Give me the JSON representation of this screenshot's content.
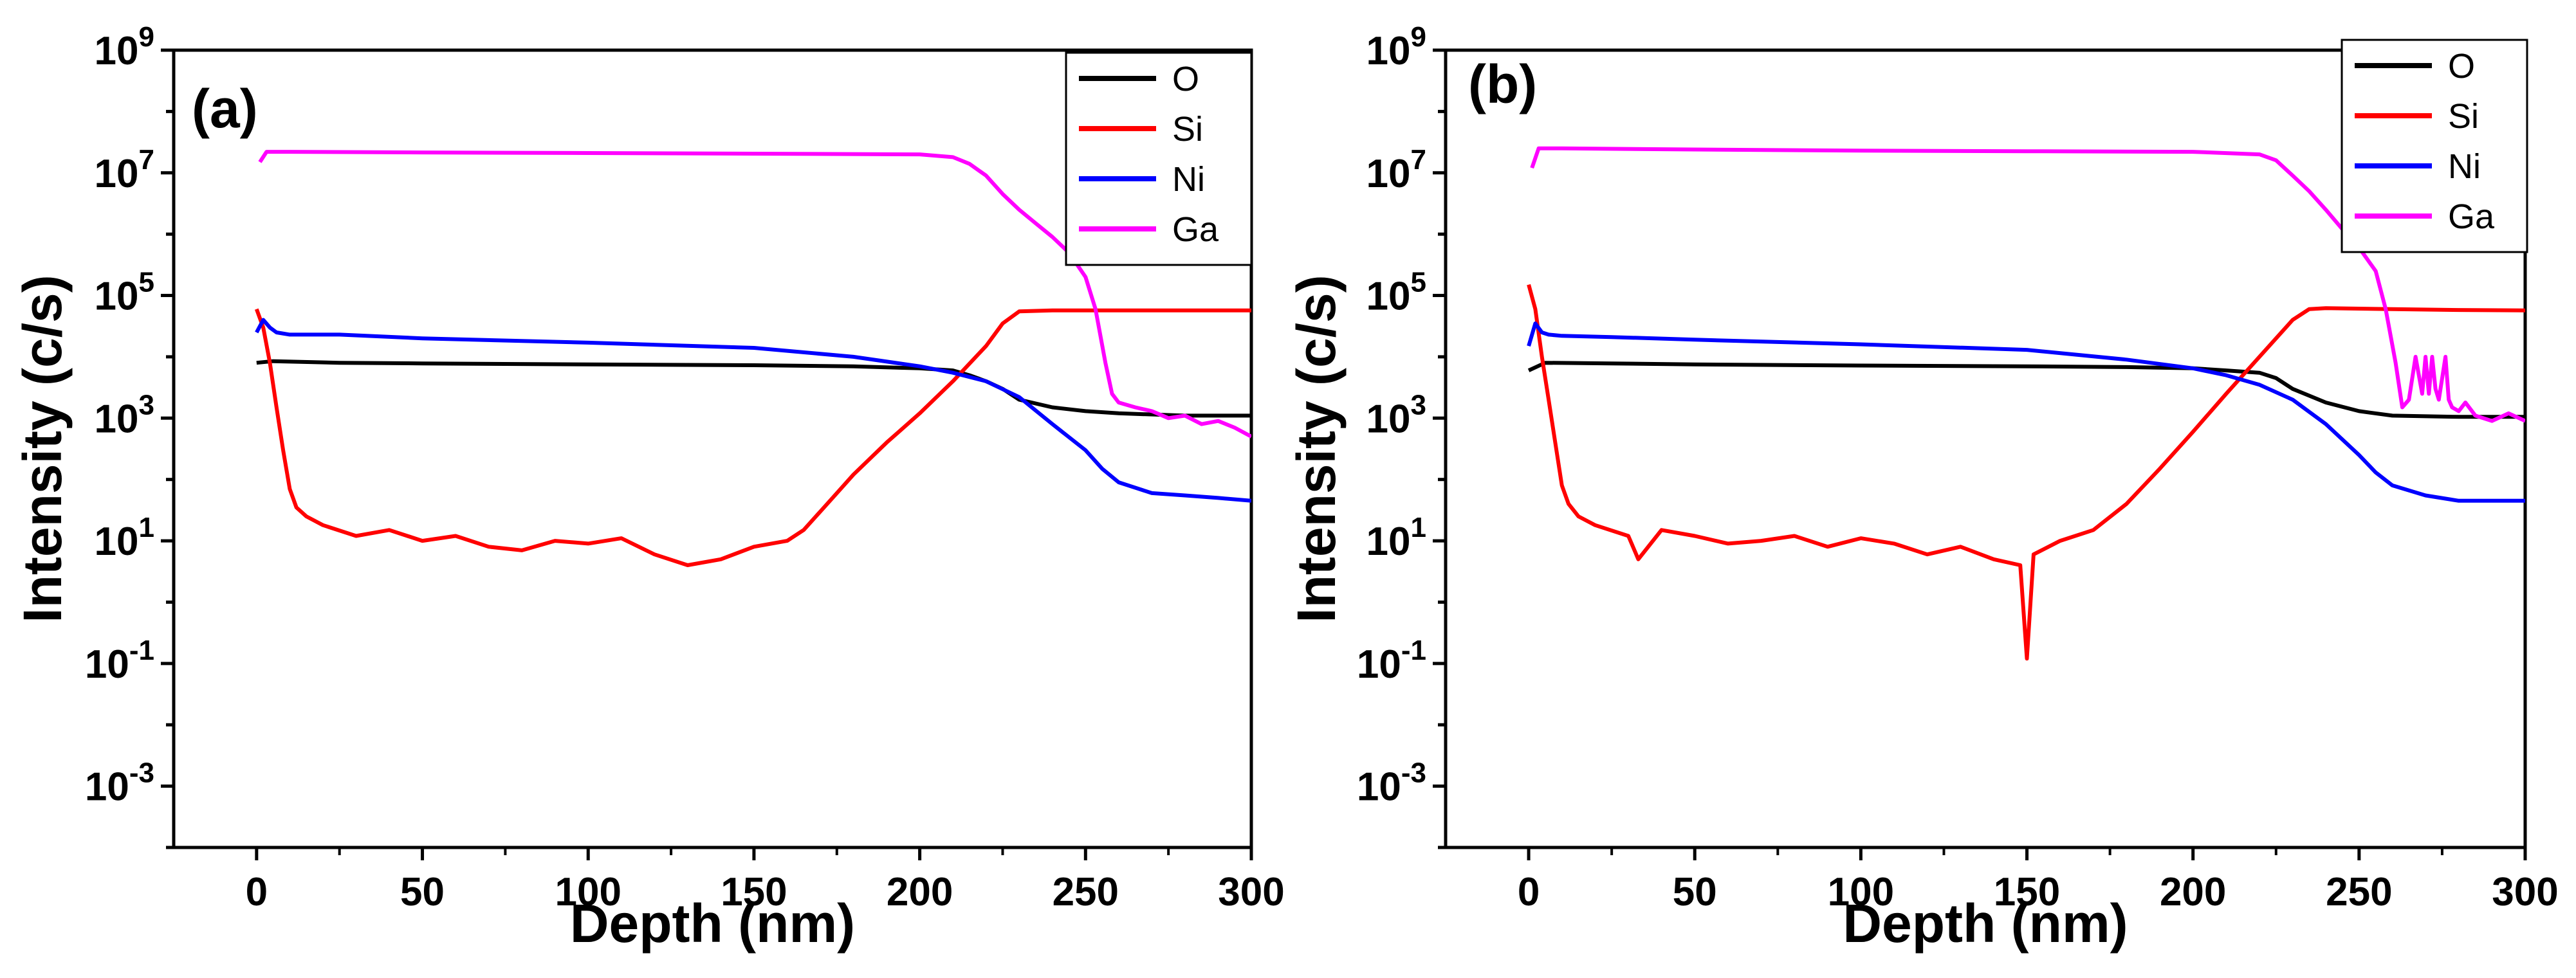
{
  "figure": {
    "panels": [
      "(a)",
      "(b)"
    ]
  },
  "chart_data": [
    {
      "panel_label": "(a)",
      "type": "line",
      "xlabel": "Depth (nm)",
      "ylabel": "Intensity (c/s)",
      "xlim": [
        -25,
        300
      ],
      "ylim_exponent": [
        -4,
        9
      ],
      "yscale": "log",
      "x_ticks": [
        "0",
        "50",
        "100",
        "150",
        "200",
        "250",
        "300"
      ],
      "y_ticks": [
        {
          "base": "10",
          "exp": "9"
        },
        {
          "base": "10",
          "exp": "7"
        },
        {
          "base": "10",
          "exp": "5"
        },
        {
          "base": "10",
          "exp": "3"
        },
        {
          "base": "10",
          "exp": "1"
        },
        {
          "base": "10",
          "exp": "-1"
        },
        {
          "base": "10",
          "exp": "-3"
        }
      ],
      "legend": {
        "placement": "top-right"
      },
      "series": [
        {
          "name": "O",
          "color": "#000000",
          "x": [
            0,
            5,
            25,
            50,
            100,
            150,
            180,
            200,
            210,
            215,
            220,
            225,
            230,
            240,
            250,
            260,
            280,
            300
          ],
          "y": [
            8000,
            8500,
            8000,
            7800,
            7500,
            7300,
            7000,
            6500,
            6000,
            5000,
            4000,
            3000,
            2000,
            1500,
            1300,
            1200,
            1100,
            1100
          ]
        },
        {
          "name": "Si",
          "color": "#ff0000",
          "x": [
            0,
            2,
            4,
            6,
            8,
            10,
            12,
            15,
            20,
            30,
            40,
            50,
            60,
            70,
            80,
            90,
            100,
            110,
            120,
            130,
            140,
            150,
            160,
            165,
            170,
            175,
            180,
            190,
            200,
            210,
            220,
            225,
            230,
            240,
            250,
            260,
            280,
            300
          ],
          "y": [
            60000,
            30000,
            8000,
            1500,
            300,
            70,
            35,
            25,
            18,
            12,
            15,
            10,
            12,
            8,
            7,
            10,
            9,
            11,
            6,
            4,
            5,
            8,
            10,
            15,
            30,
            60,
            120,
            400,
            1200,
            4000,
            15000,
            35000,
            55000,
            57000,
            57000,
            57000,
            57000,
            57000
          ]
        },
        {
          "name": "Ni",
          "color": "#0000ff",
          "x": [
            0,
            2,
            4,
            6,
            10,
            25,
            50,
            100,
            150,
            180,
            200,
            210,
            220,
            230,
            240,
            250,
            255,
            260,
            270,
            280,
            290,
            300
          ],
          "y": [
            25000,
            40000,
            30000,
            25000,
            23000,
            23000,
            20000,
            17000,
            14000,
            10000,
            7000,
            5500,
            4000,
            2200,
            800,
            300,
            150,
            90,
            60,
            55,
            50,
            45
          ]
        },
        {
          "name": "Ga",
          "color": "#ff00ff",
          "x": [
            1,
            3,
            10,
            50,
            100,
            150,
            200,
            210,
            215,
            220,
            225,
            230,
            235,
            240,
            245,
            250,
            253,
            256,
            258,
            260,
            265,
            270,
            275,
            280,
            285,
            290,
            295,
            300
          ],
          "y": [
            15000000,
            22000000,
            22000000,
            21500000,
            21000000,
            20500000,
            20000000,
            18000000,
            14000000,
            9000000,
            4500000,
            2500000,
            1500000,
            900000,
            500000,
            200000,
            60000,
            8000,
            2500,
            1800,
            1500,
            1300,
            1000,
            1100,
            800,
            900,
            700,
            500
          ]
        }
      ]
    },
    {
      "panel_label": "(b)",
      "type": "line",
      "xlabel": "Depth (nm)",
      "ylabel": "Intensity (c/s)",
      "xlim": [
        -25,
        300
      ],
      "ylim_exponent": [
        -4,
        9
      ],
      "yscale": "log",
      "x_ticks": [
        "0",
        "50",
        "100",
        "150",
        "200",
        "250",
        "300"
      ],
      "y_ticks": [
        {
          "base": "10",
          "exp": "9"
        },
        {
          "base": "10",
          "exp": "7"
        },
        {
          "base": "10",
          "exp": "5"
        },
        {
          "base": "10",
          "exp": "3"
        },
        {
          "base": "10",
          "exp": "1"
        },
        {
          "base": "10",
          "exp": "-1"
        },
        {
          "base": "10",
          "exp": "-3"
        }
      ],
      "legend": {
        "placement": "top-right"
      },
      "series": [
        {
          "name": "O",
          "color": "#000000",
          "x": [
            0,
            5,
            25,
            50,
            100,
            150,
            180,
            200,
            210,
            220,
            225,
            230,
            240,
            250,
            260,
            280,
            300
          ],
          "y": [
            6000,
            8000,
            7800,
            7500,
            7200,
            7000,
            6800,
            6500,
            6000,
            5500,
            4500,
            3000,
            1800,
            1300,
            1100,
            1050,
            1050
          ]
        },
        {
          "name": "Si",
          "color": "#ff0000",
          "x": [
            0,
            2,
            4,
            6,
            8,
            10,
            12,
            15,
            20,
            30,
            33,
            40,
            50,
            60,
            70,
            80,
            90,
            100,
            110,
            120,
            130,
            140,
            148,
            150,
            152,
            160,
            170,
            180,
            190,
            200,
            210,
            220,
            230,
            235,
            240,
            260,
            280,
            300
          ],
          "y": [
            150000,
            60000,
            10000,
            2000,
            400,
            80,
            40,
            25,
            18,
            12,
            5,
            15,
            12,
            9,
            10,
            12,
            8,
            11,
            9,
            6,
            8,
            5,
            4,
            0.12,
            6,
            10,
            15,
            40,
            150,
            600,
            2500,
            10000,
            40000,
            60000,
            62000,
            60000,
            58000,
            57000
          ]
        },
        {
          "name": "Ni",
          "color": "#0000ff",
          "x": [
            0,
            2,
            4,
            6,
            10,
            25,
            50,
            100,
            150,
            180,
            200,
            210,
            220,
            230,
            240,
            250,
            255,
            260,
            270,
            280,
            290,
            300
          ],
          "y": [
            15000,
            35000,
            25000,
            23000,
            22000,
            21000,
            19000,
            16000,
            13000,
            9000,
            6500,
            5000,
            3500,
            2000,
            800,
            250,
            130,
            80,
            55,
            45,
            45,
            45
          ]
        },
        {
          "name": "Ga",
          "color": "#ff00ff",
          "x": [
            1,
            3,
            10,
            50,
            100,
            150,
            200,
            220,
            225,
            230,
            235,
            240,
            245,
            250,
            255,
            258,
            261,
            263,
            265,
            267,
            269,
            270,
            271,
            272,
            273,
            274,
            276,
            277,
            278,
            280,
            282,
            285,
            290,
            295,
            300
          ],
          "y": [
            12000000,
            25000000,
            25000000,
            24000000,
            23000000,
            22500000,
            22000000,
            20000000,
            16000000,
            9000000,
            5000000,
            2500000,
            1200000,
            600000,
            250000,
            60000,
            8000,
            1500,
            2000,
            10000,
            2500,
            10000,
            2500,
            10000,
            3000,
            2000,
            10000,
            2000,
            1500,
            1300,
            1800,
            1100,
            900,
            1200,
            900
          ]
        }
      ]
    }
  ]
}
